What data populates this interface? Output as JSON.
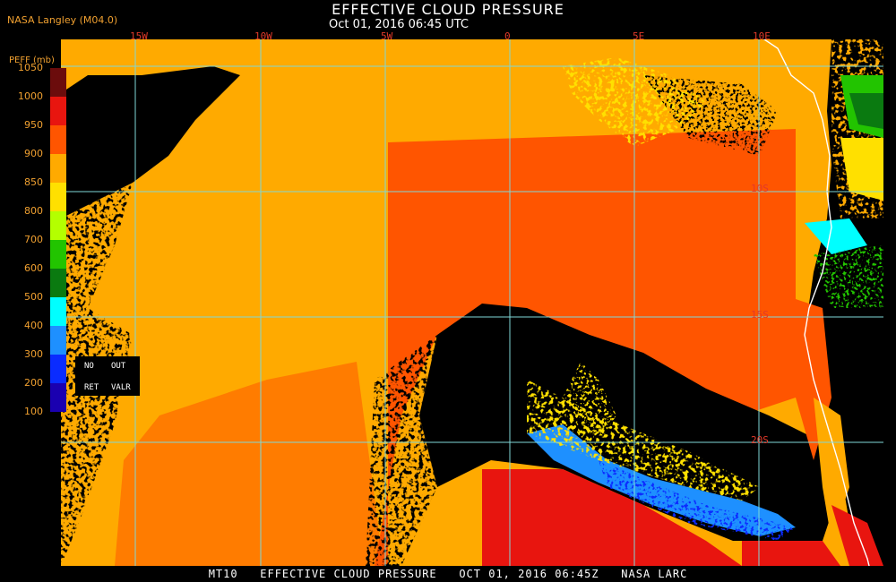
{
  "header": {
    "title": "EFFECTIVE CLOUD PRESSURE",
    "subtitle": "Oct 01, 2016 06:45 UTC",
    "credit": "NASA Langley (M04.0)"
  },
  "grid": {
    "lon_labels": [
      "15W",
      "10W",
      "5W",
      "0",
      "5E",
      "10E"
    ],
    "lat_labels": [
      "10S",
      "15S",
      "20S"
    ]
  },
  "legend": {
    "title": "PEFF (mb)",
    "ticks": [
      "1050",
      "1000",
      "950",
      "900",
      "850",
      "800",
      "700",
      "600",
      "500",
      "400",
      "300",
      "200",
      "100"
    ],
    "colors": [
      "#6b0c0c",
      "#e8150f",
      "#ff5500",
      "#ffaa00",
      "#ffe000",
      "#b4ff00",
      "#22c400",
      "#0a7a10",
      "#00ffff",
      "#1e90ff",
      "#0a2cff",
      "#1a00b0",
      "#8a3cf0"
    ],
    "no_ret": [
      "NO",
      "RET"
    ],
    "out_valr": [
      "OUT",
      "VALR"
    ]
  },
  "footer": {
    "text": "MT10   EFFECTIVE CLOUD PRESSURE   OCT 01, 2016 06:45Z   NASA LARC"
  }
}
